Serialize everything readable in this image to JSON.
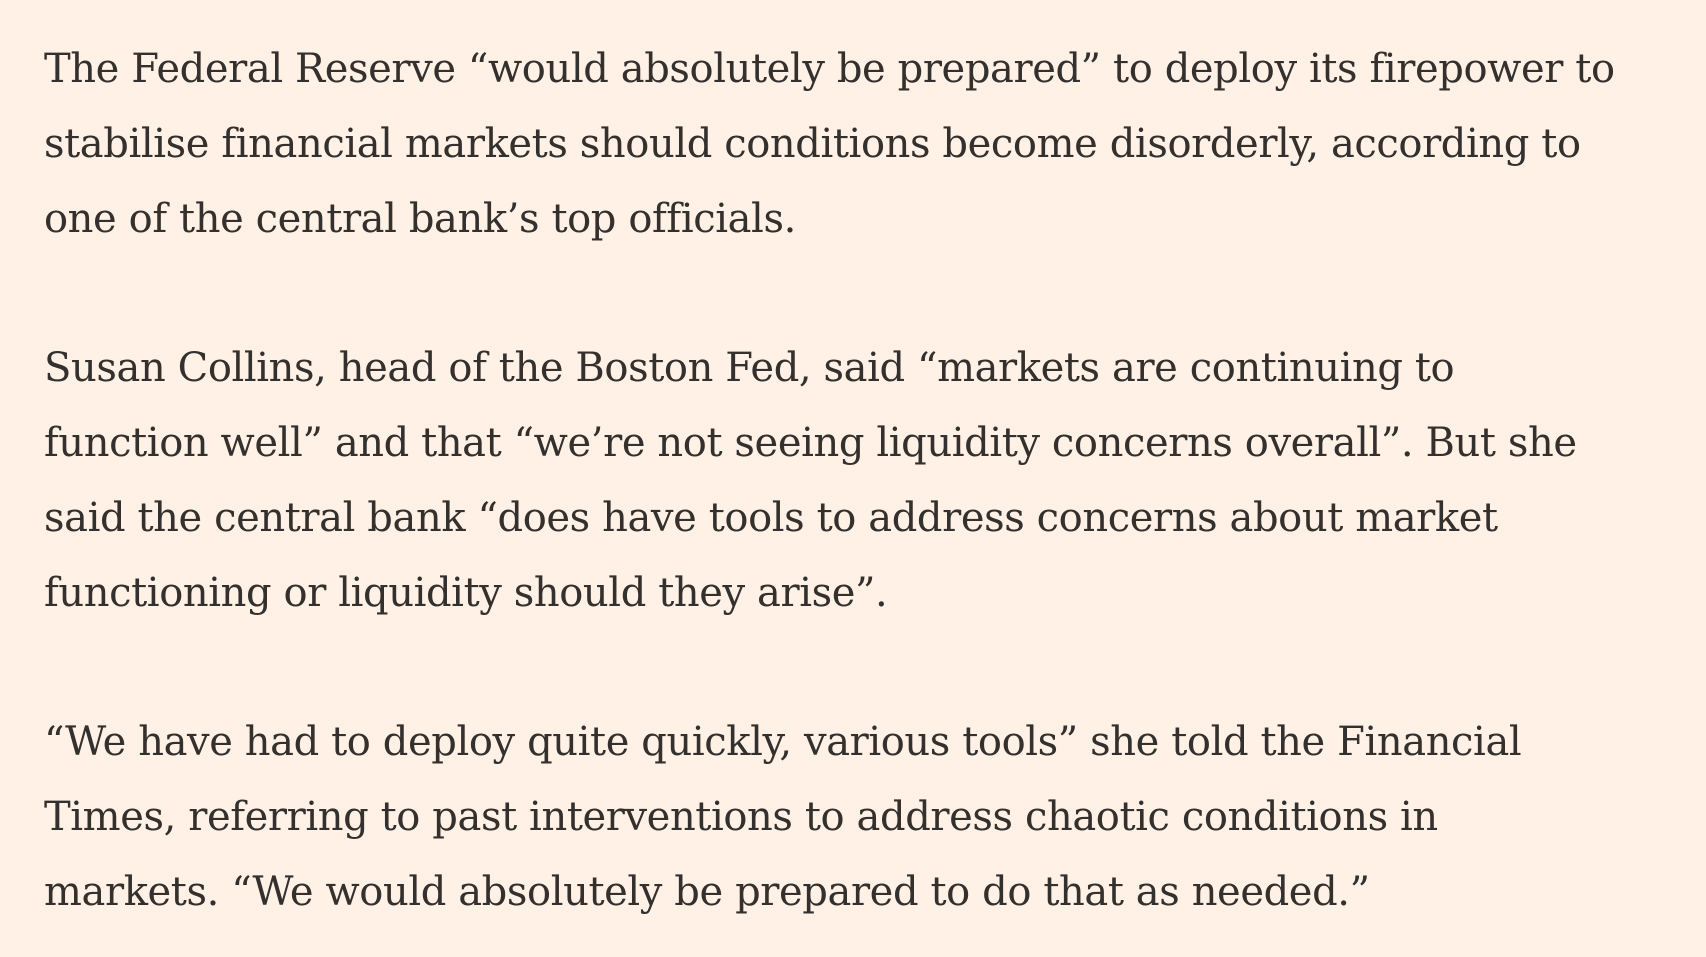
{
  "article": {
    "paragraphs": [
      {
        "lines": [
          "The Federal Reserve “would absolutely be prepared” to deploy its firepower to",
          "stabilise financial markets should conditions become disorderly, according to",
          "one of the central bank’s top officials."
        ]
      },
      {
        "lines": [
          "Susan Collins, head of the Boston Fed, said “markets are continuing to",
          "function well” and that “we’re not seeing liquidity concerns overall”. But she",
          "said the central bank “does have tools to address concerns about market",
          "functioning or liquidity should they arise”."
        ]
      },
      {
        "lines": [
          "“We have had to deploy quite quickly, various tools” she told the Financial",
          "Times, referring to past interventions to address chaotic conditions in",
          "markets. “We would absolutely be prepared to do that as needed.”"
        ]
      }
    ]
  },
  "colors": {
    "background": "#fff1e5",
    "text": "#33302e"
  }
}
